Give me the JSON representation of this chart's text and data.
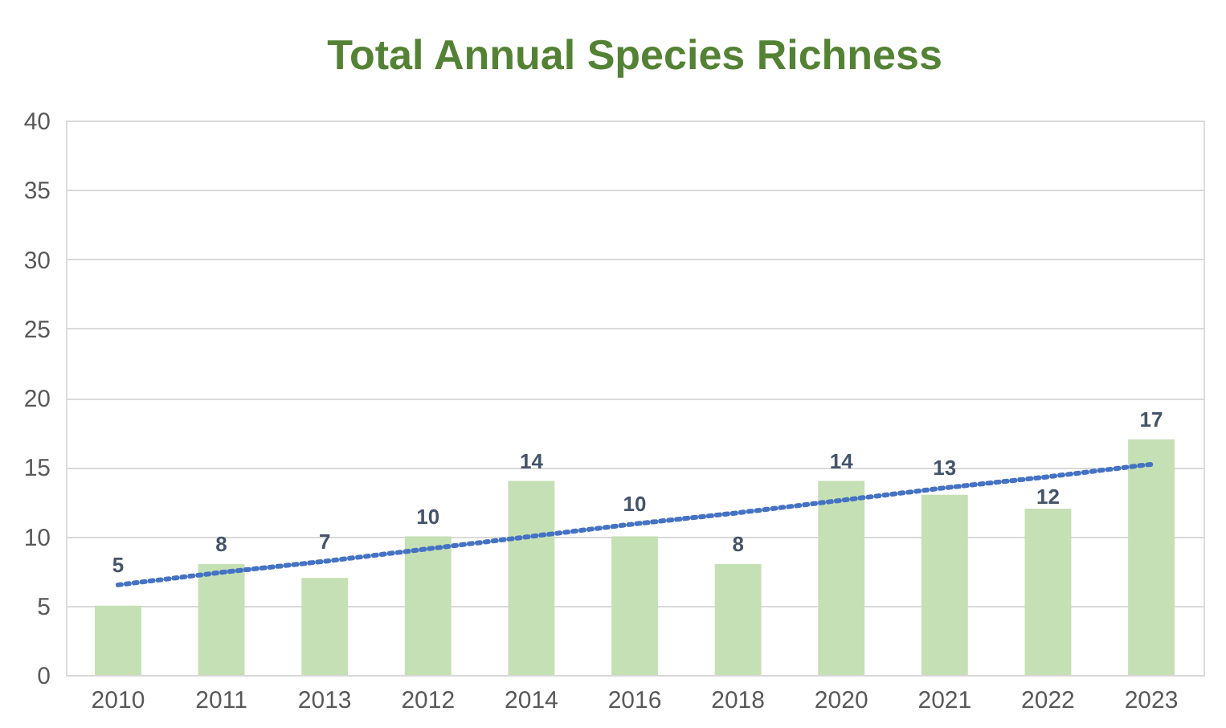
{
  "chart_data": {
    "type": "bar",
    "title": "Total Annual Species Richness",
    "categories": [
      "2010",
      "2011",
      "2013",
      "2012",
      "2014",
      "2016",
      "2018",
      "2020",
      "2021",
      "2022",
      "2023"
    ],
    "series": [
      {
        "color": "#c5e0b4",
        "values": [
          5,
          8,
          7,
          10,
          14,
          10,
          8,
          14,
          13,
          12,
          17
        ],
        "value_labels": [
          "5",
          "8",
          "7",
          "10",
          "14",
          "10",
          "8",
          "14",
          "13",
          "12",
          "17"
        ]
      },
      {
        "type": "line",
        "color": "#4472c4",
        "line_style": "dotted",
        "values": [
          6.5,
          7.4,
          8.2,
          9.1,
          10.0,
          10.9,
          11.7,
          12.6,
          13.5,
          14.3,
          15.2
        ]
      }
    ],
    "ylim": [
      0,
      40
    ],
    "yticks": [
      0,
      5,
      10,
      15,
      20,
      25,
      30,
      35,
      40
    ],
    "grid": "y"
  }
}
